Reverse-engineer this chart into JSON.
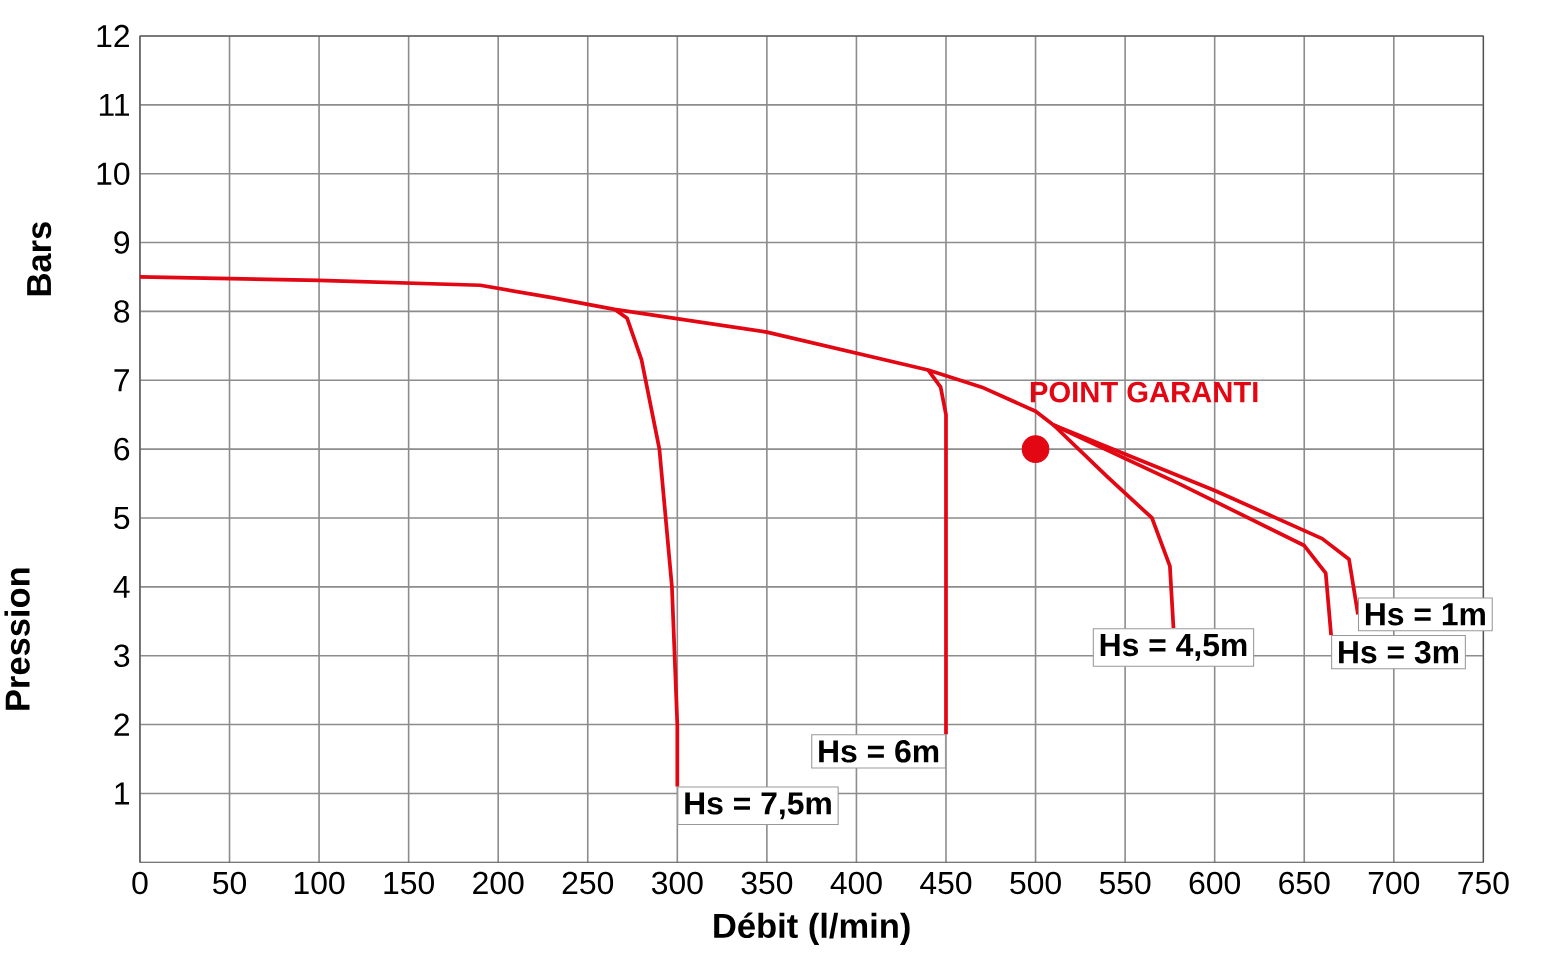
{
  "chart_data": {
    "type": "line",
    "xlabel": "Débit (l/min)",
    "ylabel": "Pression",
    "xlim": [
      0,
      750
    ],
    "ylim": [
      0,
      12
    ],
    "xticks": [
      0,
      50,
      100,
      150,
      200,
      250,
      300,
      350,
      400,
      450,
      500,
      550,
      600,
      650,
      700,
      750
    ],
    "yticks": [
      1,
      2,
      3,
      4,
      5,
      6,
      7,
      8,
      9,
      10,
      11,
      12
    ],
    "grid": true,
    "line_style": "solid",
    "series": [
      {
        "name": "Hs = 7,5m",
        "color": "#e30613",
        "x": [
          265,
          272,
          280,
          290,
          297,
          300,
          300
        ],
        "values": [
          8.03,
          7.9,
          7.3,
          6.0,
          4.0,
          2.0,
          1.1
        ]
      },
      {
        "name": "Hs = 6m",
        "color": "#e30613",
        "x": [
          440,
          447,
          450,
          450
        ],
        "values": [
          7.15,
          6.9,
          6.5,
          1.86
        ]
      },
      {
        "name": "Hs = 4,5m",
        "color": "#e30613",
        "x": [
          510,
          540,
          565,
          575,
          577
        ],
        "values": [
          6.35,
          5.6,
          5.0,
          4.3,
          3.4
        ]
      },
      {
        "name": "Hs = 3m",
        "color": "#e30613",
        "x": [
          510,
          580,
          650,
          662,
          665
        ],
        "values": [
          6.35,
          5.5,
          4.6,
          4.2,
          3.3
        ]
      },
      {
        "name": "Hs = 1m",
        "color": "#e30613",
        "x": [
          0,
          100,
          190,
          230,
          265,
          350,
          440,
          470,
          500,
          510,
          600,
          660,
          675,
          680
        ],
        "values": [
          8.5,
          8.45,
          8.38,
          8.2,
          8.03,
          7.7,
          7.15,
          6.9,
          6.55,
          6.35,
          5.4,
          4.7,
          4.4,
          3.6
        ]
      },
      {
        "type": "scatter",
        "marker": "circle",
        "color": "#e30613",
        "x": [
          500
        ],
        "values": [
          6.0
        ]
      }
    ],
    "annotations": [
      "Bars",
      {
        "text": "POINT GARANTI",
        "x": 500,
        "y": 6
      }
    ]
  }
}
